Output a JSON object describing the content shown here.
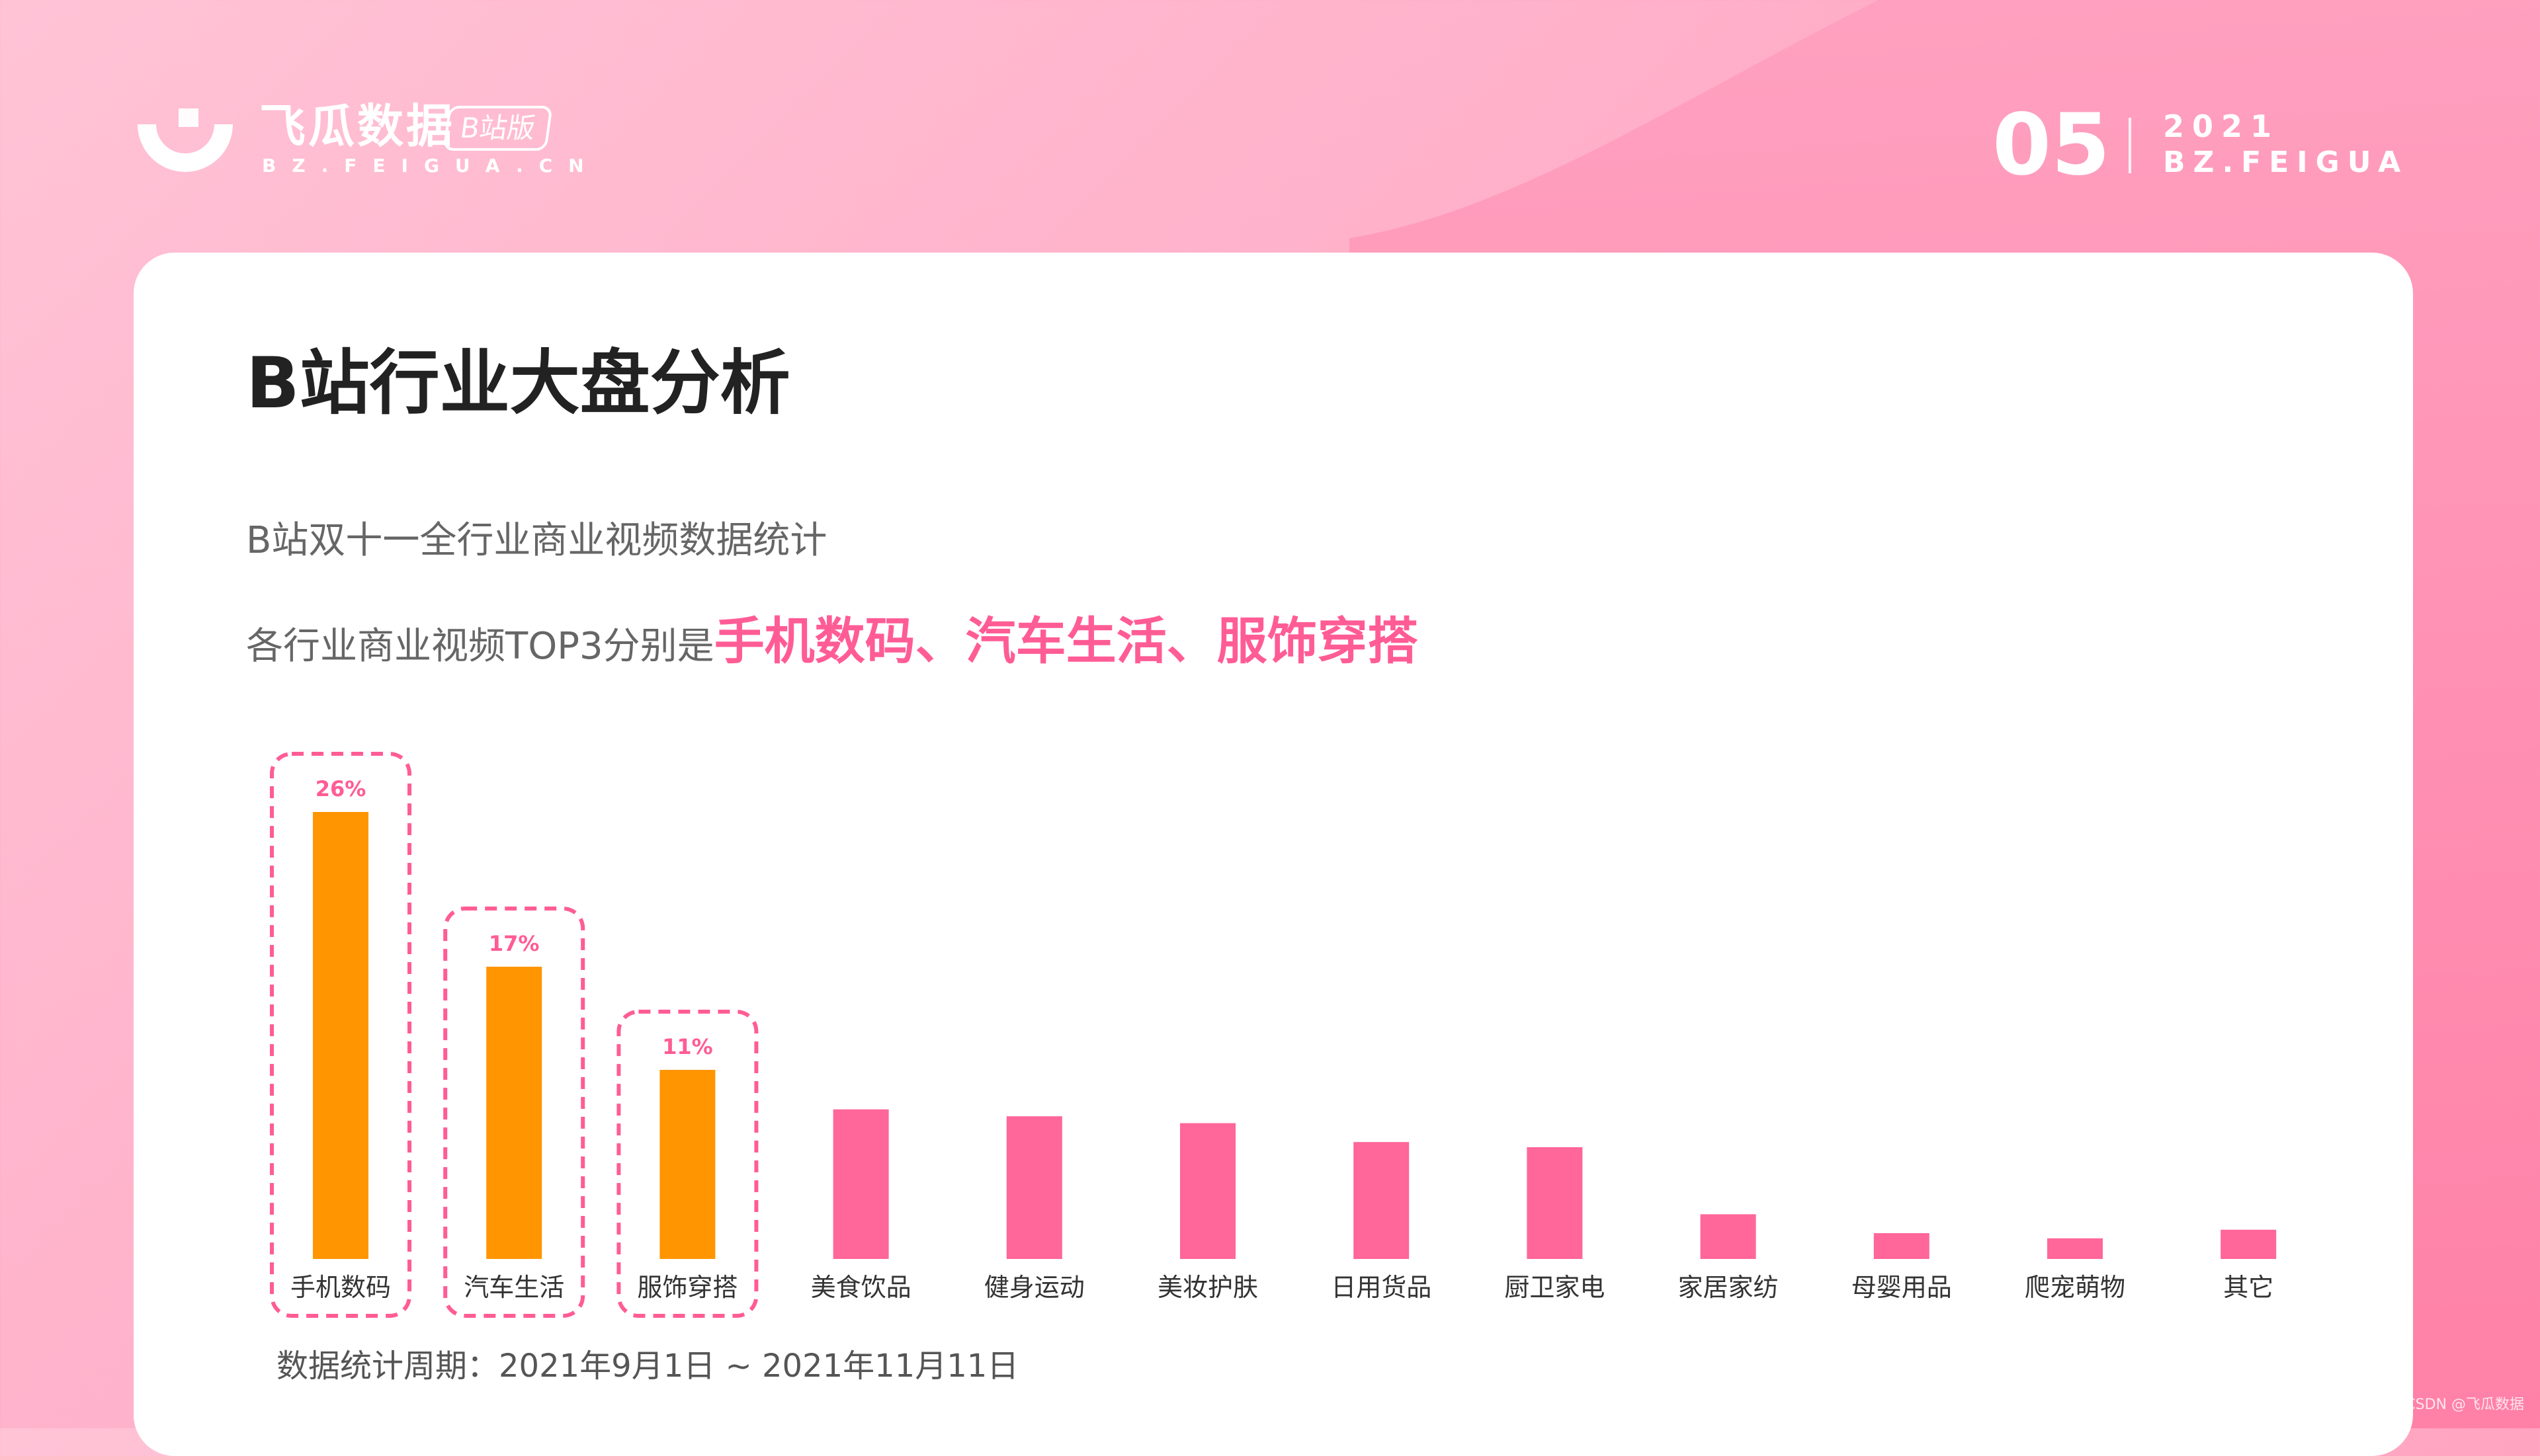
{
  "brand": {
    "name": "飞瓜数据",
    "badge": "B站版",
    "url": "BZ.FEIGUA.CN"
  },
  "page": {
    "number": "05",
    "year": "2021",
    "brand": "BZ.FEIGUA"
  },
  "content": {
    "title": "B站行业大盘分析",
    "subtitle": "B站双十一全行业商业视频数据统计",
    "highlight_prefix": "各行业商业视频TOP3分别是",
    "highlight_text": "手机数码、汽车生活、服饰穿搭",
    "footnote": "数据统计周期：2021年9月1日 ~ 2021年11月11日"
  },
  "watermark": "CSDN @飞瓜数据",
  "colors": {
    "top_bar": "#ff9500",
    "other_bar": "#ff6699",
    "accent": "#ff5c95"
  },
  "chart_data": {
    "type": "bar",
    "categories": [
      "手机数码",
      "汽车生活",
      "服饰穿搭",
      "美食饮品",
      "健身运动",
      "美妆护肤",
      "日用货品",
      "厨卫家电",
      "家居家纺",
      "母婴用品",
      "爬宠萌物",
      "其它"
    ],
    "values": [
      26,
      17,
      11,
      8.7,
      8.3,
      7.9,
      6.8,
      6.5,
      2.6,
      1.5,
      1.2,
      1.7
    ],
    "value_labels": [
      "26%",
      "17%",
      "11%",
      "",
      "",
      "",
      "",
      "",
      "",
      "",
      "",
      ""
    ],
    "highlighted": [
      true,
      true,
      true,
      false,
      false,
      false,
      false,
      false,
      false,
      false,
      false,
      false
    ],
    "ylim": [
      0,
      26
    ],
    "title": "",
    "xlabel": "",
    "ylabel": "",
    "grid": false,
    "legend": "none"
  }
}
